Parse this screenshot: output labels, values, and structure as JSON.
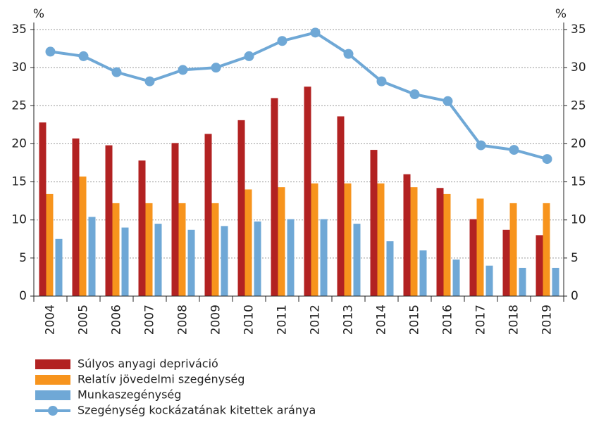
{
  "chart_data": {
    "type": "bar-line",
    "ylabel": "%",
    "y2label": "%",
    "categories": [
      "2004",
      "2005",
      "2006",
      "2007",
      "2008",
      "2009",
      "2010",
      "2011",
      "2012",
      "2013",
      "2014",
      "2015",
      "2016",
      "2017",
      "2018",
      "2019"
    ],
    "series": [
      {
        "name": "Súlyos anyagi depriváció",
        "type": "bar",
        "color": "#b22222",
        "values": [
          22.8,
          20.7,
          19.8,
          17.8,
          20.1,
          21.3,
          23.1,
          26.0,
          27.5,
          23.6,
          19.2,
          16.0,
          14.2,
          10.1,
          8.7,
          8.0
        ]
      },
      {
        "name": "Relatív jövedelmi szegénység",
        "type": "bar",
        "color": "#f7941d",
        "values": [
          13.4,
          15.7,
          12.2,
          12.2,
          12.2,
          12.2,
          14.0,
          14.3,
          14.8,
          14.8,
          14.8,
          14.3,
          13.4,
          12.8,
          12.2,
          12.2
        ]
      },
      {
        "name": "Munkaszegénység",
        "type": "bar",
        "color": "#6fa8d6",
        "values": [
          7.5,
          10.4,
          9.0,
          9.5,
          8.7,
          9.2,
          9.8,
          10.1,
          10.1,
          9.5,
          7.2,
          6.0,
          4.8,
          4.0,
          3.7,
          3.7
        ]
      },
      {
        "name": "Szegénység kockázatának kitettek aránya",
        "type": "line",
        "color": "#6fa8d6",
        "values": [
          32.1,
          31.5,
          29.4,
          28.2,
          29.7,
          30.0,
          31.5,
          33.5,
          34.6,
          31.8,
          28.2,
          26.5,
          25.6,
          19.8,
          19.2,
          18.0
        ]
      }
    ],
    "ylim": [
      0,
      35
    ],
    "yticks": [
      0,
      5,
      10,
      15,
      20,
      25,
      30,
      35
    ],
    "y2lim": [
      0,
      35
    ],
    "y2ticks": [
      0,
      5,
      10,
      15,
      20,
      25,
      30,
      35
    ],
    "grid": true
  }
}
